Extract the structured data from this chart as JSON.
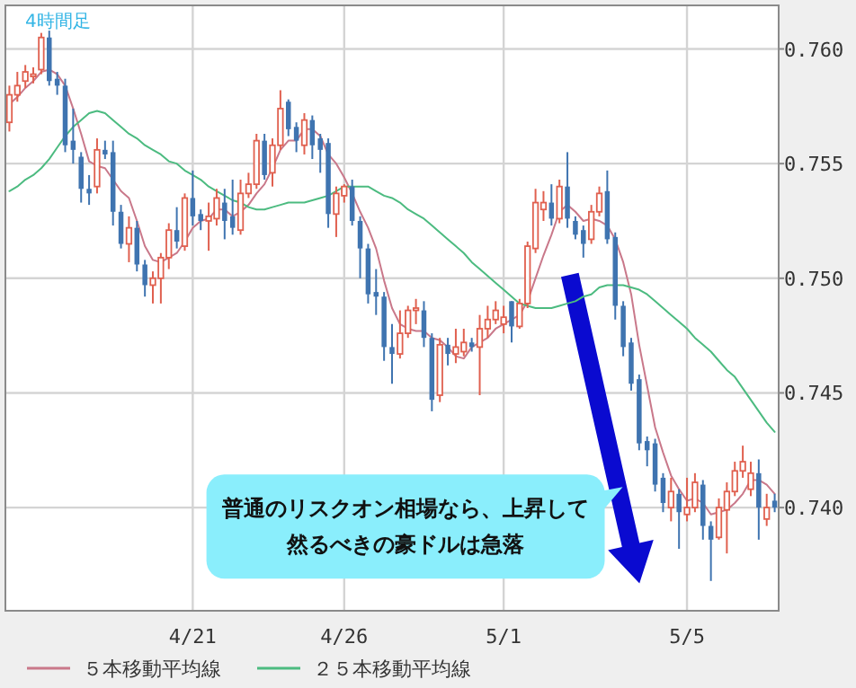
{
  "chart_data": {
    "type": "candlestick",
    "title": "4時間足",
    "categories": [
      null,
      null,
      null,
      null,
      null,
      null,
      null,
      null,
      null,
      null,
      null,
      null,
      null,
      null,
      null,
      null,
      null,
      null,
      null,
      null,
      null,
      null,
      null,
      "4/21",
      null,
      null,
      null,
      null,
      null,
      null,
      null,
      null,
      null,
      null,
      null,
      null,
      null,
      null,
      null,
      null,
      null,
      null,
      "4/26",
      null,
      null,
      null,
      null,
      null,
      null,
      null,
      null,
      null,
      null,
      null,
      null,
      null,
      null,
      null,
      null,
      null,
      null,
      null,
      "5/1",
      null,
      null,
      null,
      null,
      null,
      null,
      null,
      null,
      null,
      null,
      null,
      null,
      null,
      null,
      null,
      null,
      null,
      null,
      null,
      null,
      null,
      null,
      "5/5",
      null,
      null,
      null,
      null,
      null,
      null,
      null,
      null,
      null,
      null,
      null
    ],
    "ohlc": [
      [
        0.7568,
        0.7584,
        0.7564,
        0.758
      ],
      [
        0.758,
        0.759,
        0.7577,
        0.7584
      ],
      [
        0.7586,
        0.7593,
        0.7583,
        0.759
      ],
      [
        0.7588,
        0.7592,
        0.7585,
        0.7589
      ],
      [
        0.7591,
        0.7607,
        0.7589,
        0.7605
      ],
      [
        0.7605,
        0.7608,
        0.7584,
        0.7586
      ],
      [
        0.7587,
        0.759,
        0.758,
        0.7584
      ],
      [
        0.7584,
        0.7587,
        0.7555,
        0.7558
      ],
      [
        0.756,
        0.7574,
        0.755,
        0.7556
      ],
      [
        0.7553,
        0.7555,
        0.7533,
        0.7539
      ],
      [
        0.7539,
        0.7545,
        0.7532,
        0.7537
      ],
      [
        0.754,
        0.7561,
        0.7537,
        0.7556
      ],
      [
        0.7556,
        0.756,
        0.7552,
        0.7554
      ],
      [
        0.7555,
        0.756,
        0.7523,
        0.7529
      ],
      [
        0.7529,
        0.7532,
        0.7513,
        0.7515
      ],
      [
        0.7515,
        0.7527,
        0.7507,
        0.7522
      ],
      [
        0.7522,
        0.7525,
        0.7503,
        0.7506
      ],
      [
        0.7506,
        0.7508,
        0.7492,
        0.7497
      ],
      [
        0.7497,
        0.7503,
        0.7489,
        0.75
      ],
      [
        0.75,
        0.7511,
        0.7489,
        0.7509
      ],
      [
        0.7509,
        0.7524,
        0.7504,
        0.7521
      ],
      [
        0.7521,
        0.7531,
        0.7513,
        0.7516
      ],
      [
        0.7514,
        0.7537,
        0.7512,
        0.7535
      ],
      [
        0.7535,
        0.7547,
        0.7523,
        0.7527
      ],
      [
        0.7528,
        0.753,
        0.7521,
        0.7525
      ],
      [
        0.7525,
        0.7533,
        0.7512,
        0.7527
      ],
      [
        0.7526,
        0.7539,
        0.7523,
        0.7535
      ],
      [
        0.7533,
        0.7539,
        0.7517,
        0.7525
      ],
      [
        0.7527,
        0.7543,
        0.7519,
        0.7522
      ],
      [
        0.7521,
        0.7543,
        0.7519,
        0.7537
      ],
      [
        0.7537,
        0.7546,
        0.7535,
        0.7541
      ],
      [
        0.7541,
        0.7563,
        0.7539,
        0.756
      ],
      [
        0.756,
        0.7563,
        0.7543,
        0.7545
      ],
      [
        0.7546,
        0.7561,
        0.754,
        0.7558
      ],
      [
        0.7558,
        0.7582,
        0.7556,
        0.7574
      ],
      [
        0.7577,
        0.7578,
        0.7562,
        0.7565
      ],
      [
        0.7566,
        0.7568,
        0.7555,
        0.756
      ],
      [
        0.7558,
        0.7572,
        0.7554,
        0.7569
      ],
      [
        0.7569,
        0.7571,
        0.7552,
        0.7558
      ],
      [
        0.7561,
        0.7563,
        0.7546,
        0.7556
      ],
      [
        0.7559,
        0.7561,
        0.7522,
        0.7528
      ],
      [
        0.7528,
        0.754,
        0.7518,
        0.7537
      ],
      [
        0.7536,
        0.7541,
        0.7533,
        0.754
      ],
      [
        0.754,
        0.7543,
        0.7523,
        0.7525
      ],
      [
        0.7525,
        0.7527,
        0.75,
        0.7513
      ],
      [
        0.7513,
        0.7515,
        0.7489,
        0.7493
      ],
      [
        0.7494,
        0.7504,
        0.7484,
        0.7492
      ],
      [
        0.7492,
        0.7494,
        0.7464,
        0.747
      ],
      [
        0.747,
        0.748,
        0.7454,
        0.7467
      ],
      [
        0.7467,
        0.7486,
        0.7465,
        0.7476
      ],
      [
        0.7476,
        0.7488,
        0.7474,
        0.7486
      ],
      [
        0.7486,
        0.7491,
        0.748,
        0.7487
      ],
      [
        0.7486,
        0.749,
        0.747,
        0.7474
      ],
      [
        0.7474,
        0.7476,
        0.7442,
        0.7447
      ],
      [
        0.7449,
        0.7474,
        0.7446,
        0.7471
      ],
      [
        0.7471,
        0.7474,
        0.7462,
        0.7467
      ],
      [
        0.7467,
        0.7478,
        0.7463,
        0.747
      ],
      [
        0.7468,
        0.7478,
        0.7466,
        0.7472
      ],
      [
        0.7472,
        0.7474,
        0.7468,
        0.747
      ],
      [
        0.747,
        0.7484,
        0.7449,
        0.7478
      ],
      [
        0.7478,
        0.7488,
        0.7474,
        0.7482
      ],
      [
        0.7482,
        0.749,
        0.748,
        0.7486
      ],
      [
        0.748,
        0.7488,
        0.7476,
        0.7483
      ],
      [
        0.749,
        0.749,
        0.7472,
        0.7479
      ],
      [
        0.7479,
        0.7491,
        0.7478,
        0.7489
      ],
      [
        0.7489,
        0.7516,
        0.7487,
        0.7514
      ],
      [
        0.7513,
        0.7539,
        0.7511,
        0.7533
      ],
      [
        0.753,
        0.7538,
        0.7525,
        0.7533
      ],
      [
        0.7533,
        0.7541,
        0.7523,
        0.7526
      ],
      [
        0.7526,
        0.7543,
        0.7524,
        0.754
      ],
      [
        0.754,
        0.7555,
        0.7522,
        0.7526
      ],
      [
        0.7525,
        0.7527,
        0.7517,
        0.7519
      ],
      [
        0.7521,
        0.7523,
        0.7509,
        0.7515
      ],
      [
        0.7517,
        0.7532,
        0.7515,
        0.7529
      ],
      [
        0.7529,
        0.754,
        0.7527,
        0.7537
      ],
      [
        0.7538,
        0.7547,
        0.7515,
        0.7517
      ],
      [
        0.7518,
        0.752,
        0.7482,
        0.7488
      ],
      [
        0.7488,
        0.749,
        0.7466,
        0.747
      ],
      [
        0.7472,
        0.7474,
        0.7451,
        0.7454
      ],
      [
        0.7456,
        0.7458,
        0.7425,
        0.7428
      ],
      [
        0.7429,
        0.7431,
        0.7418,
        0.7425
      ],
      [
        0.7428,
        0.743,
        0.7407,
        0.741
      ],
      [
        0.7413,
        0.7415,
        0.7398,
        0.7402
      ],
      [
        0.74,
        0.7413,
        0.7394,
        0.7407
      ],
      [
        0.7406,
        0.7408,
        0.7382,
        0.7398
      ],
      [
        0.7397,
        0.7413,
        0.7394,
        0.74
      ],
      [
        0.74,
        0.7415,
        0.7398,
        0.7411
      ],
      [
        0.741,
        0.7412,
        0.7386,
        0.7392
      ],
      [
        0.7392,
        0.7394,
        0.7368,
        0.7386
      ],
      [
        0.7387,
        0.7404,
        0.7386,
        0.74
      ],
      [
        0.7399,
        0.7411,
        0.738,
        0.7407
      ],
      [
        0.7407,
        0.742,
        0.7405,
        0.7416
      ],
      [
        0.7416,
        0.7427,
        0.7413,
        0.742
      ],
      [
        0.7408,
        0.742,
        0.7405,
        0.7415
      ],
      [
        0.7415,
        0.7421,
        0.7386,
        0.74
      ],
      [
        0.7395,
        0.7406,
        0.7392,
        0.74
      ],
      [
        0.7403,
        0.7406,
        0.7398,
        0.74
      ]
    ],
    "colors": [
      "#e0604f",
      "#e0604f",
      "#e0604f",
      "#e0604f",
      "#e0604f",
      "#3f74b0",
      "#3f74b0",
      "#3f74b0",
      "#3f74b0",
      "#3f74b0",
      "#3f74b0",
      "#e0604f",
      "#3f74b0",
      "#3f74b0",
      "#3f74b0",
      "#e0604f",
      "#3f74b0",
      "#3f74b0",
      "#e0604f",
      "#e0604f",
      "#e0604f",
      "#3f74b0",
      "#e0604f",
      "#3f74b0",
      "#3f74b0",
      "#e0604f",
      "#e0604f",
      "#3f74b0",
      "#3f74b0",
      "#e0604f",
      "#e0604f",
      "#e0604f",
      "#3f74b0",
      "#e0604f",
      "#e0604f",
      "#3f74b0",
      "#3f74b0",
      "#e0604f",
      "#3f74b0",
      "#3f74b0",
      "#3f74b0",
      "#e0604f",
      "#e0604f",
      "#3f74b0",
      "#3f74b0",
      "#3f74b0",
      "#3f74b0",
      "#3f74b0",
      "#3f74b0",
      "#e0604f",
      "#e0604f",
      "#e0604f",
      "#3f74b0",
      "#3f74b0",
      "#e0604f",
      "#3f74b0",
      "#e0604f",
      "#e0604f",
      "#3f74b0",
      "#e0604f",
      "#e0604f",
      "#e0604f",
      "#e0604f",
      "#3f74b0",
      "#e0604f",
      "#e0604f",
      "#e0604f",
      "#e0604f",
      "#3f74b0",
      "#e0604f",
      "#3f74b0",
      "#3f74b0",
      "#3f74b0",
      "#e0604f",
      "#e0604f",
      "#3f74b0",
      "#3f74b0",
      "#3f74b0",
      "#3f74b0",
      "#3f74b0",
      "#3f74b0",
      "#3f74b0",
      "#3f74b0",
      "#e0604f",
      "#3f74b0",
      "#e0604f",
      "#e0604f",
      "#3f74b0",
      "#3f74b0",
      "#e0604f",
      "#e0604f",
      "#e0604f",
      "#e0604f",
      "#e0604f",
      "#3f74b0",
      "#e0604f",
      "#3f74b0"
    ],
    "series": [
      {
        "type": "line",
        "name": "５本移動平均線",
        "color": "#c9788a",
        "values": [
          0.7576,
          0.7579,
          0.7583,
          0.7586,
          0.759,
          0.7591,
          0.7589,
          0.7584,
          0.7574,
          0.7563,
          0.7551,
          0.7549,
          0.7548,
          0.7543,
          0.7538,
          0.7535,
          0.7525,
          0.7514,
          0.7508,
          0.7507,
          0.7509,
          0.7511,
          0.7516,
          0.7522,
          0.7525,
          0.7526,
          0.753,
          0.753,
          0.7527,
          0.7529,
          0.7532,
          0.7537,
          0.7541,
          0.7548,
          0.7556,
          0.756,
          0.756,
          0.7565,
          0.7565,
          0.7562,
          0.7554,
          0.755,
          0.7544,
          0.7537,
          0.7529,
          0.7522,
          0.7513,
          0.7499,
          0.7487,
          0.748,
          0.7478,
          0.7477,
          0.7477,
          0.7474,
          0.7473,
          0.747,
          0.7466,
          0.7465,
          0.747,
          0.7472,
          0.7474,
          0.7478,
          0.748,
          0.7482,
          0.7484,
          0.749,
          0.75,
          0.751,
          0.7519,
          0.7529,
          0.7532,
          0.7529,
          0.7525,
          0.7526,
          0.7525,
          0.7523,
          0.7517,
          0.7507,
          0.7493,
          0.7471,
          0.7453,
          0.7435,
          0.7424,
          0.7414,
          0.7408,
          0.7403,
          0.7404,
          0.7402,
          0.7397,
          0.7398,
          0.7399,
          0.7402,
          0.7406,
          0.7412,
          0.7412,
          0.741,
          0.7406
        ]
      },
      {
        "type": "line",
        "name": "２５本移動平均線",
        "color": "#4cbb80",
        "values": [
          0.7538,
          0.754,
          0.7543,
          0.7545,
          0.7548,
          0.7552,
          0.7557,
          0.7562,
          0.7566,
          0.7569,
          0.7572,
          0.7573,
          0.7572,
          0.7569,
          0.7566,
          0.7563,
          0.7561,
          0.7558,
          0.7556,
          0.7554,
          0.7551,
          0.755,
          0.7547,
          0.7545,
          0.7543,
          0.754,
          0.7538,
          0.7536,
          0.7534,
          0.7533,
          0.7531,
          0.753,
          0.753,
          0.7531,
          0.7532,
          0.7533,
          0.7533,
          0.7533,
          0.7534,
          0.7535,
          0.7536,
          0.7538,
          0.754,
          0.754,
          0.754,
          0.754,
          0.7538,
          0.7536,
          0.7535,
          0.7533,
          0.753,
          0.7528,
          0.7526,
          0.7523,
          0.752,
          0.7517,
          0.7514,
          0.7511,
          0.7507,
          0.7504,
          0.7501,
          0.7498,
          0.7495,
          0.7492,
          0.7489,
          0.7488,
          0.7487,
          0.7487,
          0.7487,
          0.7488,
          0.7489,
          0.749,
          0.7492,
          0.7493,
          0.7496,
          0.7497,
          0.7497,
          0.7497,
          0.7496,
          0.7495,
          0.7493,
          0.749,
          0.7487,
          0.7484,
          0.7481,
          0.7478,
          0.7474,
          0.7471,
          0.7468,
          0.7464,
          0.746,
          0.7457,
          0.7452,
          0.7447,
          0.7442,
          0.7437,
          0.7433
        ]
      }
    ],
    "ylim": [
      0.7355,
      0.7619
    ],
    "yticks": [
      {
        "value": 0.74,
        "label": "0.740"
      },
      {
        "value": 0.745,
        "label": "0.745"
      },
      {
        "value": 0.75,
        "label": "0.750"
      },
      {
        "value": 0.755,
        "label": "0.755"
      },
      {
        "value": 0.76,
        "label": "0.760"
      }
    ],
    "grid": true,
    "legend": "bottom",
    "annotations": [
      "普通のリスクオン相場なら、上昇して",
      "然るべきの豪ドルは急落"
    ]
  }
}
